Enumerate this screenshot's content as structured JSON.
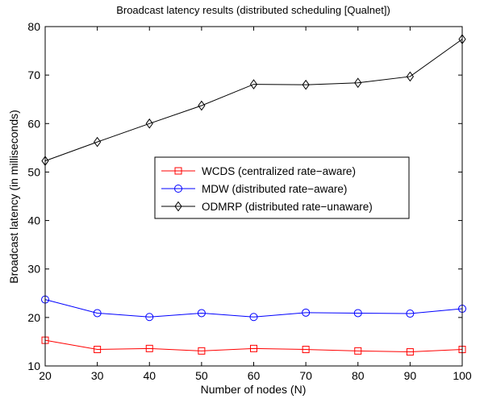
{
  "chart_data": {
    "type": "line",
    "title": "Broadcast latency results (distributed scheduling [Qualnet])",
    "xlabel": "Number of nodes (N)",
    "ylabel": "Broadcast latency (in milliseconds)",
    "xlim": [
      20,
      100
    ],
    "ylim": [
      10,
      80
    ],
    "xticks": [
      20,
      30,
      40,
      50,
      60,
      70,
      80,
      90,
      100
    ],
    "yticks": [
      10,
      20,
      30,
      40,
      50,
      60,
      70,
      80
    ],
    "grid": false,
    "legend_position": "center",
    "x": [
      20,
      30,
      40,
      50,
      60,
      70,
      80,
      90,
      100
    ],
    "series": [
      {
        "name": "WCDS (centralized rate−aware)",
        "color": "#ff0000",
        "marker": "square",
        "values": [
          15.3,
          13.4,
          13.6,
          13.1,
          13.6,
          13.4,
          13.1,
          12.9,
          13.4
        ]
      },
      {
        "name": "MDW (distributed rate−aware)",
        "color": "#0000ff",
        "marker": "circle",
        "values": [
          23.7,
          20.9,
          20.1,
          20.9,
          20.1,
          21.0,
          20.9,
          20.8,
          21.8
        ]
      },
      {
        "name": "ODMRP (distributed rate−unaware)",
        "color": "#000000",
        "marker": "diamond",
        "values": [
          52.3,
          56.2,
          60.0,
          63.7,
          68.1,
          68.0,
          68.4,
          69.7,
          77.4
        ]
      }
    ]
  }
}
